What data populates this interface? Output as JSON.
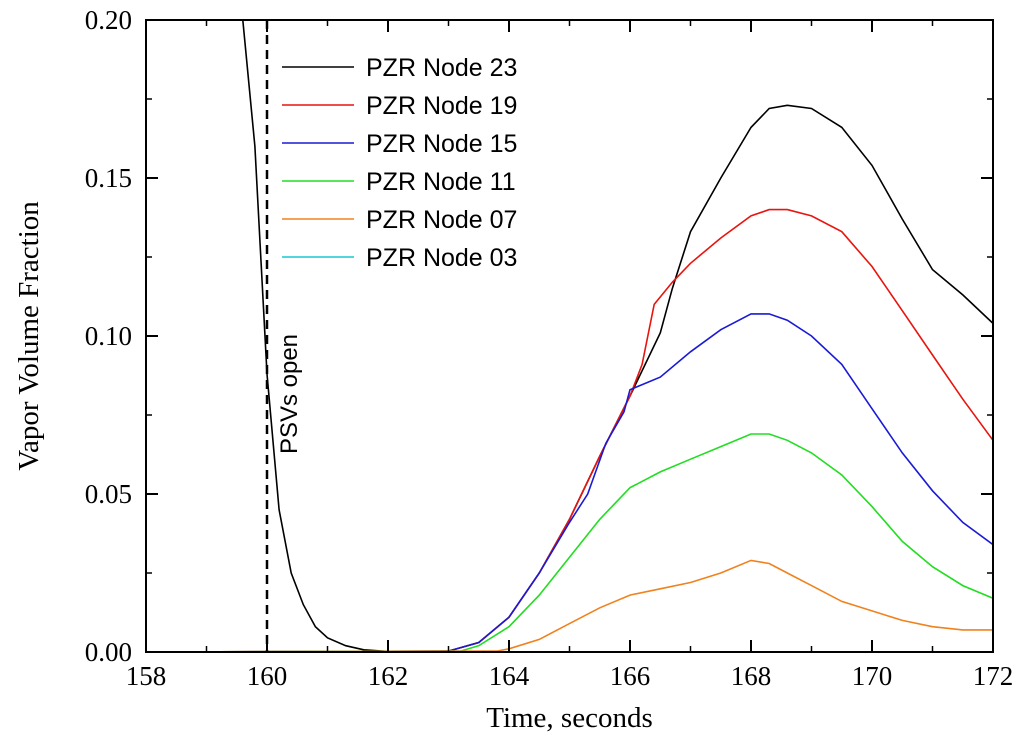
{
  "chart_data": {
    "type": "line",
    "xlabel": "Time, seconds",
    "ylabel": "Vapor Volume Fraction",
    "xlim": [
      158,
      172
    ],
    "ylim": [
      0,
      0.2
    ],
    "xticks": [
      158,
      160,
      162,
      164,
      166,
      168,
      170,
      172
    ],
    "xtick_labels": [
      "158",
      "160",
      "162",
      "164",
      "166",
      "168",
      "170",
      "172"
    ],
    "yticks": [
      0,
      0.05,
      0.1,
      0.15,
      0.2
    ],
    "ytick_labels": [
      "0.00",
      "0.05",
      "0.10",
      "0.15",
      "0.20"
    ],
    "grid": false,
    "legend_position": "top-left",
    "annotation": {
      "text": "PSVs open",
      "x": 160
    },
    "series": [
      {
        "name": "PZR Node 23",
        "color": "#000000",
        "points": [
          [
            159.6,
            0.2
          ],
          [
            159.8,
            0.16
          ],
          [
            160,
            0.088
          ],
          [
            160.2,
            0.045
          ],
          [
            160.4,
            0.025
          ],
          [
            160.6,
            0.015
          ],
          [
            160.8,
            0.008
          ],
          [
            161,
            0.0045
          ],
          [
            161.3,
            0.002
          ],
          [
            161.6,
            0.0007
          ],
          [
            162,
            0.0002
          ],
          [
            162.5,
            0
          ],
          [
            163,
            0.0003
          ],
          [
            163.5,
            0.003
          ],
          [
            164,
            0.011
          ],
          [
            164.5,
            0.025
          ],
          [
            165,
            0.042
          ],
          [
            165.5,
            0.062
          ],
          [
            166,
            0.081
          ],
          [
            166.5,
            0.101
          ],
          [
            166.7,
            0.115
          ],
          [
            167,
            0.133
          ],
          [
            167.5,
            0.15
          ],
          [
            168,
            0.166
          ],
          [
            168.3,
            0.172
          ],
          [
            168.6,
            0.173
          ],
          [
            169,
            0.172
          ],
          [
            169.5,
            0.166
          ],
          [
            170,
            0.154
          ],
          [
            170.5,
            0.137
          ],
          [
            171,
            0.121
          ],
          [
            171.5,
            0.113
          ],
          [
            172,
            0.104
          ]
        ]
      },
      {
        "name": "PZR Node 19",
        "color": "#e8140e",
        "points": [
          [
            158,
            0
          ],
          [
            163,
            0.0003
          ],
          [
            163.5,
            0.003
          ],
          [
            164,
            0.011
          ],
          [
            164.5,
            0.025
          ],
          [
            165,
            0.042
          ],
          [
            165.5,
            0.062
          ],
          [
            166,
            0.081
          ],
          [
            166.2,
            0.091
          ],
          [
            166.4,
            0.11
          ],
          [
            166.7,
            0.117
          ],
          [
            167,
            0.123
          ],
          [
            167.5,
            0.131
          ],
          [
            168,
            0.138
          ],
          [
            168.3,
            0.14
          ],
          [
            168.6,
            0.14
          ],
          [
            169,
            0.138
          ],
          [
            169.5,
            0.133
          ],
          [
            170,
            0.122
          ],
          [
            170.5,
            0.108
          ],
          [
            171,
            0.094
          ],
          [
            171.5,
            0.08
          ],
          [
            172,
            0.067
          ]
        ]
      },
      {
        "name": "PZR Node 15",
        "color": "#1a1ad6",
        "points": [
          [
            158,
            0
          ],
          [
            163,
            0.0003
          ],
          [
            163.5,
            0.003
          ],
          [
            164,
            0.011
          ],
          [
            164.5,
            0.025
          ],
          [
            165,
            0.041
          ],
          [
            165.3,
            0.05
          ],
          [
            165.6,
            0.066
          ],
          [
            165.9,
            0.076
          ],
          [
            166,
            0.083
          ],
          [
            166.5,
            0.087
          ],
          [
            167,
            0.095
          ],
          [
            167.5,
            0.102
          ],
          [
            168,
            0.107
          ],
          [
            168.3,
            0.107
          ],
          [
            168.6,
            0.105
          ],
          [
            169,
            0.1
          ],
          [
            169.5,
            0.091
          ],
          [
            170,
            0.077
          ],
          [
            170.5,
            0.063
          ],
          [
            171,
            0.051
          ],
          [
            171.5,
            0.041
          ],
          [
            172,
            0.034
          ]
        ]
      },
      {
        "name": "PZR Node 11",
        "color": "#22dd22",
        "points": [
          [
            158,
            0
          ],
          [
            163.2,
            0.0003
          ],
          [
            163.5,
            0.002
          ],
          [
            164,
            0.008
          ],
          [
            164.5,
            0.018
          ],
          [
            165,
            0.03
          ],
          [
            165.5,
            0.042
          ],
          [
            166,
            0.052
          ],
          [
            166.5,
            0.057
          ],
          [
            167,
            0.061
          ],
          [
            167.5,
            0.065
          ],
          [
            168,
            0.069
          ],
          [
            168.3,
            0.069
          ],
          [
            168.6,
            0.067
          ],
          [
            169,
            0.063
          ],
          [
            169.5,
            0.056
          ],
          [
            170,
            0.046
          ],
          [
            170.5,
            0.035
          ],
          [
            171,
            0.027
          ],
          [
            171.5,
            0.021
          ],
          [
            172,
            0.017
          ]
        ]
      },
      {
        "name": "PZR Node 07",
        "color": "#f0821e",
        "points": [
          [
            158,
            0
          ],
          [
            163.8,
            0.0003
          ],
          [
            164,
            0.001
          ],
          [
            164.5,
            0.004
          ],
          [
            165,
            0.009
          ],
          [
            165.5,
            0.014
          ],
          [
            166,
            0.018
          ],
          [
            166.5,
            0.02
          ],
          [
            167,
            0.022
          ],
          [
            167.5,
            0.025
          ],
          [
            168,
            0.029
          ],
          [
            168.3,
            0.028
          ],
          [
            168.6,
            0.025
          ],
          [
            169,
            0.021
          ],
          [
            169.5,
            0.016
          ],
          [
            170,
            0.013
          ],
          [
            170.5,
            0.01
          ],
          [
            171,
            0.008
          ],
          [
            171.5,
            0.007
          ],
          [
            172,
            0.007
          ]
        ]
      },
      {
        "name": "PZR Node 03",
        "color": "#19c8d2",
        "points": [
          [
            158,
            0
          ],
          [
            172,
            0
          ]
        ]
      }
    ]
  }
}
